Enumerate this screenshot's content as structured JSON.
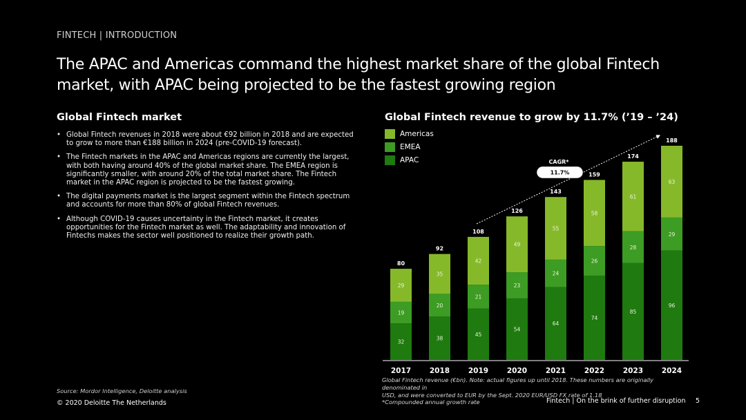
{
  "header": {
    "eyebrow": "FINTECH | INTRODUCTION",
    "title": "The APAC and Americas command the highest market share of the global Fintech market, with APAC being projected to be the fastest growing region"
  },
  "left": {
    "heading": "Global Fintech market",
    "bullets": [
      "Global Fintech revenues in 2018 were about €92 billion in 2018 and are expected to grow to more than €188 billion in 2024 (pre-COVID-19 forecast).",
      "The Fintech markets in the APAC and Americas regions are currently the largest, with both having around 40% of the global market share. The EMEA region is significantly smaller, with around 20% of the total market share. The Fintech market in the APAC region is projected to be the fastest growing.",
      "The digital payments market is the largest segment within the Fintech spectrum and accounts for more than 80% of global Fintech revenues.",
      "Although COVID-19 causes uncertainty in the Fintech market, it creates opportunities for the Fintech market as well. The adaptability and innovation of Fintechs makes the sector well positioned to realize their growth path."
    ]
  },
  "chart_data": {
    "type": "bar",
    "stacked": true,
    "title": "Global Fintech revenue to grow by 11.7% (’19 – ’24)",
    "categories": [
      "2017",
      "2018",
      "2019",
      "2020",
      "2021",
      "2022",
      "2023",
      "2024"
    ],
    "series": [
      {
        "name": "APAC",
        "values": [
          32,
          38,
          45,
          54,
          64,
          74,
          85,
          96
        ],
        "color": "#1f7a10"
      },
      {
        "name": "EMEA",
        "values": [
          19,
          20,
          21,
          23,
          24,
          26,
          28,
          29
        ],
        "color": "#3d9c23"
      },
      {
        "name": "Americas",
        "values": [
          29,
          35,
          42,
          49,
          55,
          58,
          61,
          63
        ],
        "color": "#86b92a"
      }
    ],
    "totals": [
      80,
      92,
      108,
      126,
      143,
      159,
      174,
      188
    ],
    "legend_order": [
      "Americas",
      "EMEA",
      "APAC"
    ],
    "legend_position": "top-left",
    "cagr": {
      "label": "CAGR*",
      "value": "11.7%"
    },
    "ylim": [
      0,
      188
    ],
    "grid": false
  },
  "footnote": {
    "lines": [
      "Global Fintech revenue (€bn). Note: actual figures up until 2018. These numbers are originally denominated in",
      "USD, and were converted to EUR by the Sept. 2020 EUR/USD FX rate of 1.18",
      "*Compounded annual growth rate"
    ]
  },
  "footer": {
    "source": "Source: Mordor Intelligence, Deloitte analysis",
    "copyright": "© 2020 Deloitte The Netherlands",
    "right": "Fintech | On the brink of further disruption",
    "page": "5"
  }
}
